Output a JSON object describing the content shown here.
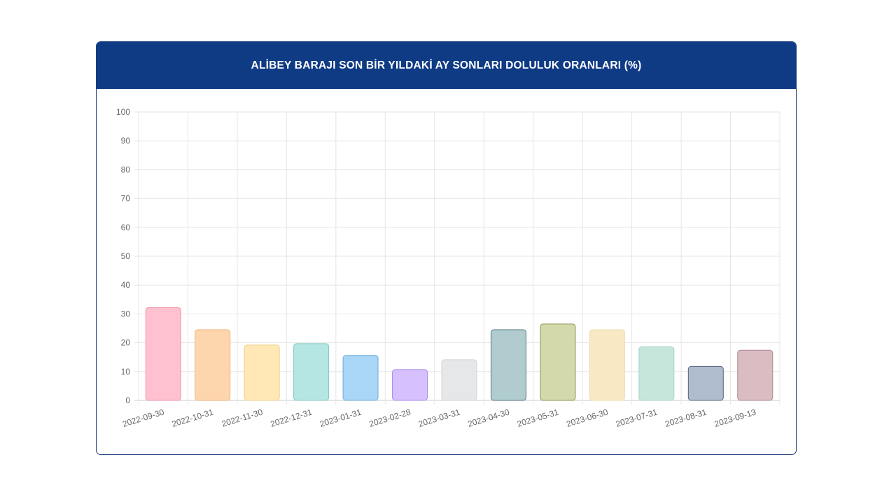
{
  "chart_data": {
    "type": "bar",
    "title": "ALİBEY BARAJI SON BİR YILDAKİ AY SONLARI DOLULUK ORANLARI (%)",
    "xlabel": "",
    "ylabel": "",
    "ylim": [
      0,
      100
    ],
    "yticks": [
      0,
      10,
      20,
      30,
      40,
      50,
      60,
      70,
      80,
      90,
      100
    ],
    "grid": true,
    "legend": "none",
    "categories": [
      "2022-09-30",
      "2022-10-31",
      "2022-11-30",
      "2022-12-31",
      "2023-01-31",
      "2023-02-28",
      "2023-03-31",
      "2023-04-30",
      "2023-05-31",
      "2023-06-30",
      "2023-07-31",
      "2023-08-31",
      "2023-09-13"
    ],
    "values": [
      32.2,
      24.5,
      19.2,
      19.7,
      15.6,
      10.7,
      14.1,
      24.5,
      26.5,
      24.5,
      18.6,
      11.8,
      17.4
    ],
    "fill_colors": [
      "#ffc0cf",
      "#fed6ad",
      "#ffe8b5",
      "#b5e6e4",
      "#a9d5f6",
      "#d6c0fd",
      "#e6e7e9",
      "#b0cccf",
      "#d4d9ac",
      "#f8e8c4",
      "#c6e6dc",
      "#aebccd",
      "#dcbcc3"
    ],
    "border_colors": [
      "#ec94a8",
      "#eeb27a",
      "#edd08c",
      "#7fc9c5",
      "#6aaedb",
      "#a98cea",
      "#d2d3d6",
      "#50767c",
      "#8d9550",
      "#eedcae",
      "#a9d3c4",
      "#55647a",
      "#a98891"
    ]
  }
}
